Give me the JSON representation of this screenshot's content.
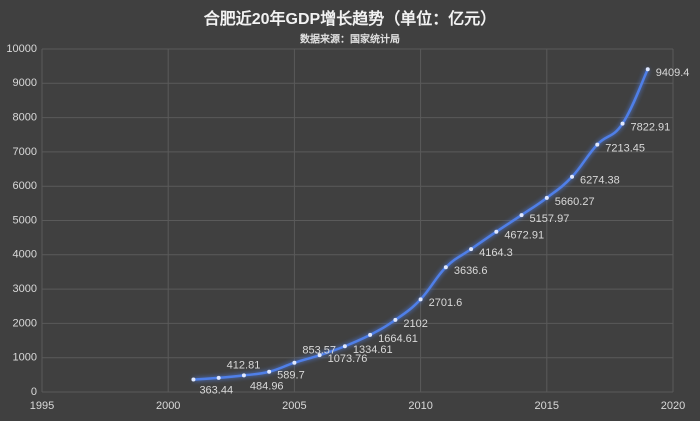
{
  "chart_data": {
    "type": "line",
    "title": "合肥近20年GDP增长趋势（单位：亿元）",
    "subtitle": "数据来源：国家统计局",
    "x": [
      2001,
      2002,
      2003,
      2004,
      2005,
      2006,
      2007,
      2008,
      2009,
      2010,
      2011,
      2012,
      2013,
      2014,
      2015,
      2016,
      2017,
      2018,
      2019
    ],
    "series": [
      {
        "name": "GDP",
        "color": "#4f7fe8",
        "values": [
          363.44,
          412.81,
          484.96,
          589.7,
          853.57,
          1073.76,
          1334.61,
          1664.61,
          2102,
          2701.6,
          3636.6,
          4164.3,
          4672.91,
          5157.97,
          5660.27,
          6274.38,
          7213.45,
          7822.91,
          9409.4
        ]
      }
    ],
    "xlim": [
      1995,
      2020
    ],
    "xticks": [
      1995,
      2000,
      2005,
      2010,
      2015,
      2020
    ],
    "ylim": [
      0,
      10000
    ],
    "yticks": [
      0,
      1000,
      2000,
      3000,
      4000,
      5000,
      6000,
      7000,
      8000,
      9000,
      10000
    ],
    "grid": true,
    "data_labels": true
  }
}
